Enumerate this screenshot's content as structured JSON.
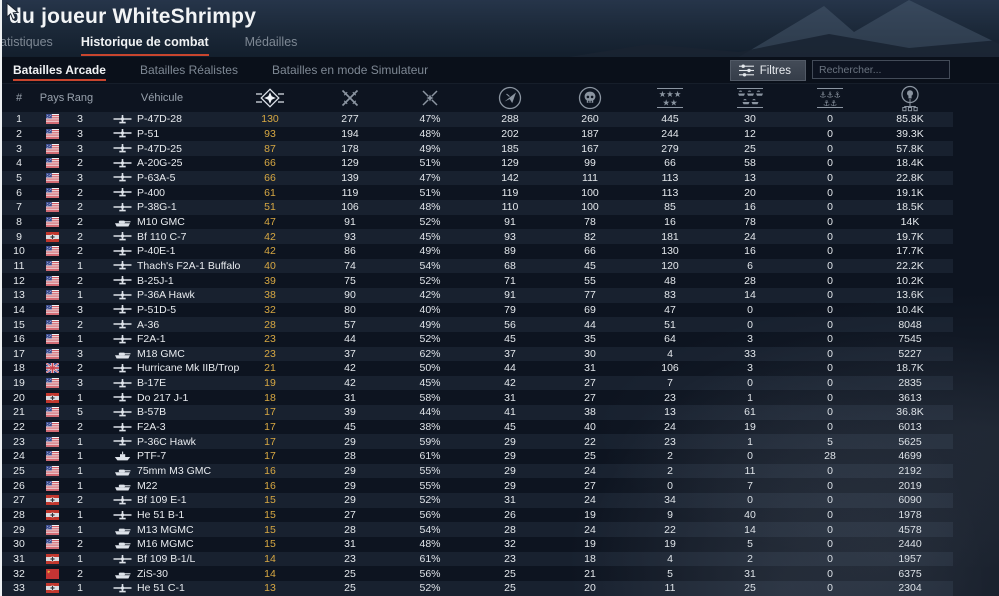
{
  "header": {
    "title": "du joueur WhiteShrimpy"
  },
  "tabs": [
    {
      "id": "statistiques",
      "label": "atistiques",
      "active": false
    },
    {
      "id": "historique",
      "label": "Historique de combat",
      "active": true
    },
    {
      "id": "medailles",
      "label": "Médailles",
      "active": false
    }
  ],
  "mode_tabs": [
    {
      "id": "arcade",
      "label": "Batailles Arcade",
      "active": true
    },
    {
      "id": "realistes",
      "label": "Batailles Réalistes",
      "active": false
    },
    {
      "id": "simulateur",
      "label": "Batailles en mode Simulateur",
      "active": false
    }
  ],
  "toolbar": {
    "filters_label": "Filtres",
    "search_placeholder": "Rechercher..."
  },
  "table": {
    "columns": {
      "num": "#",
      "country": "Pays",
      "rank": "Rang",
      "vehicle": "Véhicule"
    },
    "icon_columns": [
      "victories",
      "battles",
      "win-rate",
      "sorties",
      "deaths",
      "air-targets-destroyed",
      "ground-targets-destroyed",
      "naval-targets-destroyed",
      "research-points"
    ],
    "rows": [
      [
        "1",
        "usa",
        "3",
        "plane",
        "P-47D-28",
        "130",
        "277",
        "47%",
        "288",
        "260",
        "445",
        "30",
        "0",
        "85.8K"
      ],
      [
        "2",
        "usa",
        "3",
        "plane",
        "P-51",
        "93",
        "194",
        "48%",
        "202",
        "187",
        "244",
        "12",
        "0",
        "39.3K"
      ],
      [
        "3",
        "usa",
        "3",
        "plane",
        "P-47D-25",
        "87",
        "178",
        "49%",
        "185",
        "167",
        "279",
        "25",
        "0",
        "57.8K"
      ],
      [
        "4",
        "usa",
        "2",
        "plane",
        "A-20G-25",
        "66",
        "129",
        "51%",
        "129",
        "99",
        "66",
        "58",
        "0",
        "18.4K"
      ],
      [
        "5",
        "usa",
        "3",
        "plane",
        "P-63A-5",
        "66",
        "139",
        "47%",
        "142",
        "111",
        "113",
        "13",
        "0",
        "22.8K"
      ],
      [
        "6",
        "usa",
        "2",
        "plane",
        "P-400",
        "61",
        "119",
        "51%",
        "119",
        "100",
        "113",
        "20",
        "0",
        "19.1K"
      ],
      [
        "7",
        "usa",
        "2",
        "plane",
        "P-38G-1",
        "51",
        "106",
        "48%",
        "110",
        "100",
        "85",
        "16",
        "0",
        "18.5K"
      ],
      [
        "8",
        "usa",
        "2",
        "tank",
        "M10 GMC",
        "47",
        "91",
        "52%",
        "91",
        "78",
        "16",
        "78",
        "0",
        "14K"
      ],
      [
        "9",
        "germany",
        "2",
        "plane",
        "Bf 110 C-7",
        "42",
        "93",
        "45%",
        "93",
        "82",
        "181",
        "24",
        "0",
        "19.7K"
      ],
      [
        "10",
        "usa",
        "2",
        "plane",
        "P-40E-1",
        "42",
        "86",
        "49%",
        "89",
        "66",
        "130",
        "16",
        "0",
        "17.7K"
      ],
      [
        "11",
        "usa",
        "1",
        "plane",
        "Thach's F2A-1 Buffalo",
        "40",
        "74",
        "54%",
        "68",
        "45",
        "120",
        "6",
        "0",
        "22.2K"
      ],
      [
        "12",
        "usa",
        "2",
        "plane",
        "B-25J-1",
        "39",
        "75",
        "52%",
        "71",
        "55",
        "48",
        "28",
        "0",
        "10.2K"
      ],
      [
        "13",
        "usa",
        "1",
        "plane",
        "P-36A Hawk",
        "38",
        "90",
        "42%",
        "91",
        "77",
        "83",
        "14",
        "0",
        "13.6K"
      ],
      [
        "14",
        "usa",
        "3",
        "plane",
        "P-51D-5",
        "32",
        "80",
        "40%",
        "79",
        "69",
        "47",
        "0",
        "0",
        "10.4K"
      ],
      [
        "15",
        "usa",
        "2",
        "plane",
        "A-36",
        "28",
        "57",
        "49%",
        "56",
        "44",
        "51",
        "0",
        "0",
        "8048"
      ],
      [
        "16",
        "usa",
        "1",
        "plane",
        "F2A-1",
        "23",
        "44",
        "52%",
        "45",
        "35",
        "64",
        "3",
        "0",
        "7545"
      ],
      [
        "17",
        "usa",
        "3",
        "tank",
        "M18 GMC",
        "23",
        "37",
        "62%",
        "37",
        "30",
        "4",
        "33",
        "0",
        "5227"
      ],
      [
        "18",
        "britain",
        "2",
        "plane",
        "Hurricane Mk IIB/Trop",
        "21",
        "42",
        "50%",
        "44",
        "31",
        "106",
        "3",
        "0",
        "18.7K"
      ],
      [
        "19",
        "usa",
        "3",
        "plane",
        "B-17E",
        "19",
        "42",
        "45%",
        "42",
        "27",
        "7",
        "0",
        "0",
        "2835"
      ],
      [
        "20",
        "germany",
        "1",
        "plane",
        "Do 217 J-1",
        "18",
        "31",
        "58%",
        "31",
        "27",
        "23",
        "1",
        "0",
        "3613"
      ],
      [
        "21",
        "usa",
        "5",
        "plane",
        "B-57B",
        "17",
        "39",
        "44%",
        "41",
        "38",
        "13",
        "61",
        "0",
        "36.8K"
      ],
      [
        "22",
        "usa",
        "2",
        "plane",
        "F2A-3",
        "17",
        "45",
        "38%",
        "45",
        "40",
        "24",
        "19",
        "0",
        "6013"
      ],
      [
        "23",
        "usa",
        "1",
        "plane",
        "P-36C Hawk",
        "17",
        "29",
        "59%",
        "29",
        "22",
        "23",
        "1",
        "5",
        "5625"
      ],
      [
        "24",
        "usa",
        "1",
        "boat",
        "PTF-7",
        "17",
        "28",
        "61%",
        "29",
        "25",
        "2",
        "0",
        "28",
        "4699"
      ],
      [
        "25",
        "usa",
        "1",
        "tank",
        "75mm M3 GMC",
        "16",
        "29",
        "55%",
        "29",
        "24",
        "2",
        "11",
        "0",
        "2192"
      ],
      [
        "26",
        "usa",
        "1",
        "tank",
        "M22",
        "16",
        "29",
        "55%",
        "29",
        "27",
        "0",
        "7",
        "0",
        "2019"
      ],
      [
        "27",
        "germany",
        "2",
        "plane",
        "Bf 109 E-1",
        "15",
        "29",
        "52%",
        "31",
        "24",
        "34",
        "0",
        "0",
        "6090"
      ],
      [
        "28",
        "germany",
        "1",
        "plane",
        "He 51 B-1",
        "15",
        "27",
        "56%",
        "26",
        "19",
        "9",
        "40",
        "0",
        "1978"
      ],
      [
        "29",
        "usa",
        "1",
        "tank",
        "M13 MGMC",
        "15",
        "28",
        "54%",
        "28",
        "24",
        "22",
        "14",
        "0",
        "4578"
      ],
      [
        "30",
        "usa",
        "2",
        "tank",
        "M16 MGMC",
        "15",
        "31",
        "48%",
        "32",
        "19",
        "19",
        "5",
        "0",
        "2440"
      ],
      [
        "31",
        "germany",
        "1",
        "plane",
        "Bf 109 B-1/L",
        "14",
        "23",
        "61%",
        "23",
        "18",
        "4",
        "2",
        "0",
        "1957"
      ],
      [
        "32",
        "ussr",
        "2",
        "tank",
        "ZiS-30",
        "14",
        "25",
        "56%",
        "25",
        "21",
        "5",
        "31",
        "0",
        "6375"
      ],
      [
        "33",
        "germany",
        "1",
        "plane",
        "He 51 C-1",
        "13",
        "25",
        "52%",
        "25",
        "20",
        "11",
        "25",
        "0",
        "2304"
      ]
    ]
  },
  "colors": {
    "accent_red": "#c8452e",
    "gold_number": "#d7a843",
    "row_stripe": "#1a2230",
    "background": "#0d1420",
    "muted_text": "#8b95a1"
  }
}
